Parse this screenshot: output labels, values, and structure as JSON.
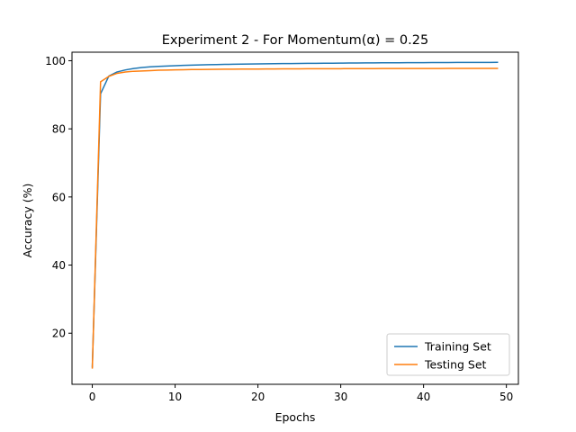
{
  "chart_data": {
    "type": "line",
    "title": "Experiment 2 - For Momentum(α) = 0.25",
    "xlabel": "Epochs",
    "ylabel": "Accuracy (%)",
    "xlim": [
      -2.45,
      51.45
    ],
    "ylim": [
      5.0,
      102.5
    ],
    "x_ticks": [
      0,
      10,
      20,
      30,
      40,
      50
    ],
    "y_ticks": [
      20,
      40,
      60,
      80,
      100
    ],
    "grid": false,
    "legend": "lower-right",
    "x": [
      0,
      1,
      2,
      3,
      4,
      5,
      6,
      7,
      8,
      9,
      10,
      11,
      12,
      13,
      14,
      15,
      16,
      17,
      18,
      19,
      20,
      21,
      22,
      23,
      24,
      25,
      26,
      27,
      28,
      29,
      30,
      31,
      32,
      33,
      34,
      35,
      36,
      37,
      38,
      39,
      40,
      41,
      42,
      43,
      44,
      45,
      46,
      47,
      48,
      49
    ],
    "series": [
      {
        "name": "Training Set",
        "color": "#1f77b4",
        "values": [
          9.9,
          90.3,
          95.5,
          96.7,
          97.3,
          97.7,
          98.0,
          98.2,
          98.35,
          98.45,
          98.55,
          98.62,
          98.7,
          98.76,
          98.82,
          98.87,
          98.92,
          98.96,
          99.0,
          99.03,
          99.06,
          99.09,
          99.12,
          99.15,
          99.17,
          99.2,
          99.22,
          99.24,
          99.26,
          99.28,
          99.3,
          99.32,
          99.33,
          99.35,
          99.36,
          99.38,
          99.39,
          99.4,
          99.42,
          99.43,
          99.44,
          99.45,
          99.46,
          99.47,
          99.48,
          99.49,
          99.5,
          99.5,
          99.51,
          99.52
        ]
      },
      {
        "name": "Testing Set",
        "color": "#ff7f0e",
        "values": [
          9.6,
          93.8,
          95.4,
          96.3,
          96.7,
          96.9,
          97.0,
          97.1,
          97.2,
          97.25,
          97.3,
          97.35,
          97.4,
          97.42,
          97.45,
          97.48,
          97.5,
          97.52,
          97.54,
          97.55,
          97.56,
          97.57,
          97.58,
          97.6,
          97.6,
          97.62,
          97.63,
          97.64,
          97.65,
          97.65,
          97.66,
          97.67,
          97.68,
          97.68,
          97.69,
          97.7,
          97.7,
          97.7,
          97.71,
          97.71,
          97.72,
          97.72,
          97.72,
          97.73,
          97.73,
          97.73,
          97.74,
          97.74,
          97.74,
          97.75
        ]
      }
    ]
  }
}
